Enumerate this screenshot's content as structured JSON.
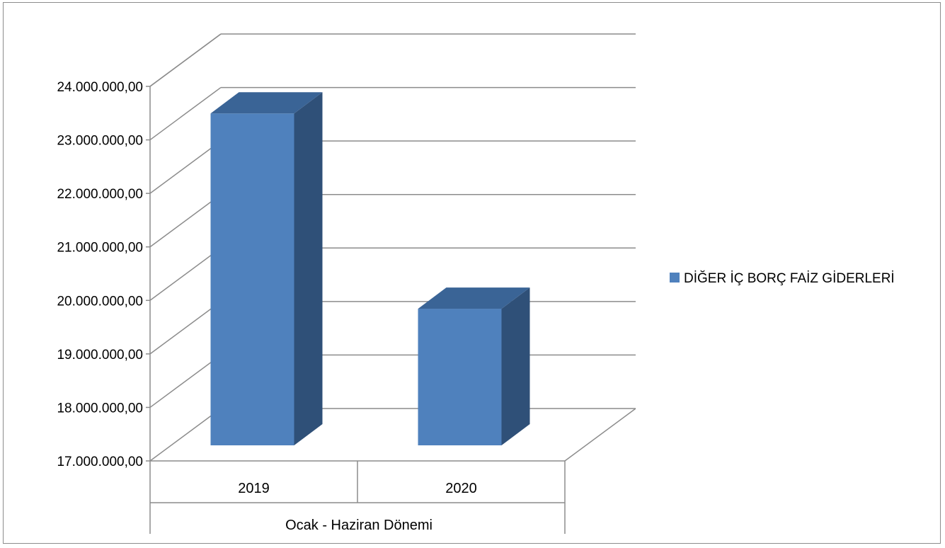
{
  "chart_data": {
    "type": "bar",
    "categories": [
      "2019",
      "2020"
    ],
    "group_label": "Ocak - Haziran Dönemi",
    "series": [
      {
        "name": "DİĞER İÇ BORÇ FAİZ GİDERLERİ",
        "values": [
          23600000,
          19950000
        ],
        "color": "#4f81bd",
        "side_color": "#2f5078",
        "top_color": "#3a6496"
      }
    ],
    "ylim": [
      17000000,
      24000000
    ],
    "y_ticks": [
      "17.000.000,00",
      "18.000.000,00",
      "19.000.000,00",
      "20.000.000,00",
      "21.000.000,00",
      "22.000.000,00",
      "23.000.000,00",
      "24.000.000,00"
    ],
    "grid": true,
    "legend_position": "right",
    "style": "3d-column"
  }
}
